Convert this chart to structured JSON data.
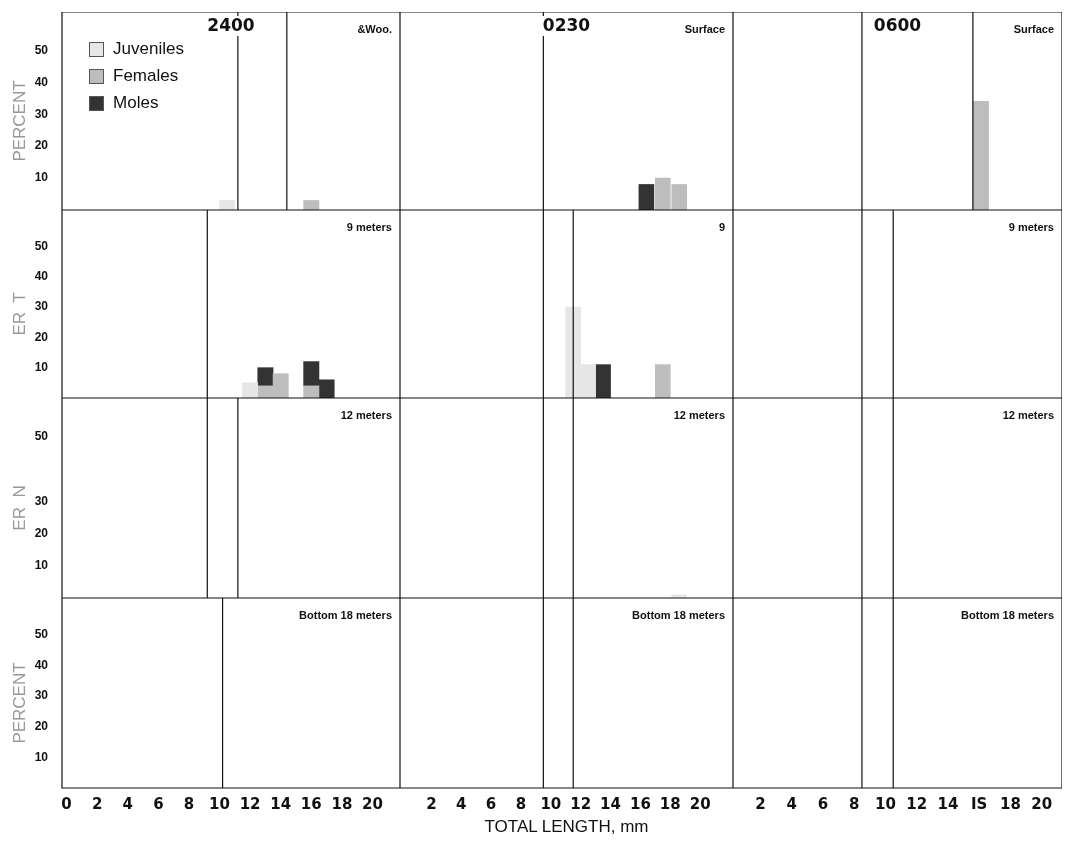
{
  "chart_data": [
    {
      "type": "bar",
      "title": "2400",
      "annotations": [
        "&Woo."
      ],
      "ylabel": "PERCENT",
      "legend": "top left",
      "tick_labels": "y",
      "grid": false,
      "xlim": [
        -0.3,
        21.8
      ],
      "ylim": [
        0,
        62
      ],
      "yticks": [
        10,
        20,
        30,
        40,
        50
      ],
      "ref_lines": [
        {
          "axis": "x",
          "value": 11.2
        },
        {
          "axis": "x",
          "value": 14.4
        }
      ],
      "series": [
        {
          "name": "Juveniles",
          "color": "#e6e6e6",
          "x": [
            10.5
          ],
          "values": [
            3
          ]
        },
        {
          "name": "Females",
          "color": "#bdbdbd",
          "x": [
            16
          ],
          "values": [
            3
          ]
        },
        {
          "name": "Moles",
          "color": "#333333"
        }
      ]
    },
    {
      "type": "bar",
      "title": "0230",
      "annotations": [
        "Surface"
      ],
      "tick_labels": false,
      "grid": false,
      "xlim": [
        -0.1,
        22.2
      ],
      "ylim": [
        0,
        62
      ],
      "ref_lines": [
        {
          "axis": "x",
          "value": 9.5
        }
      ],
      "series": [
        {
          "color": "#333333",
          "x": [
            16.4
          ],
          "values": [
            8
          ]
        },
        {
          "color": "#bdbdbd",
          "x": [
            17.5,
            18.6
          ],
          "values": [
            10,
            8
          ]
        }
      ]
    },
    {
      "type": "bar",
      "title": "0600",
      "annotations": [
        "Surface"
      ],
      "tick_labels": false,
      "grid": false,
      "xlim": [
        0.25,
        21.3
      ],
      "ylim": [
        0,
        62
      ],
      "ref_lines": [
        {
          "axis": "x",
          "value": 8.5
        },
        {
          "axis": "x",
          "value": 15.6
        }
      ],
      "series": [
        {
          "color": "#bdbdbd",
          "x": [
            16.1
          ],
          "values": [
            34
          ]
        }
      ]
    },
    {
      "type": "bar",
      "annotations": [
        "9 meters"
      ],
      "ylabel": "ER  T",
      "tick_labels": "y",
      "stacked": true,
      "grid": false,
      "xlim": [
        -0.3,
        21.8
      ],
      "ylim": [
        0,
        62
      ],
      "yticks": [
        10,
        20,
        30,
        40,
        50
      ],
      "ref_lines": [
        {
          "axis": "x",
          "value": 9.2
        }
      ],
      "x": [
        12,
        13,
        14,
        16,
        17
      ],
      "series": [
        {
          "color": "#e6e6e6",
          "values": [
            5,
            null,
            null,
            null,
            null
          ]
        },
        {
          "color": "#bdbdbd",
          "values": [
            null,
            4,
            8,
            4,
            null
          ]
        },
        {
          "color": "#333333",
          "values": [
            null,
            6,
            null,
            8,
            6
          ]
        }
      ]
    },
    {
      "type": "bar",
      "annotations": [
        "9"
      ],
      "tick_labels": false,
      "grid": false,
      "xlim": [
        -0.1,
        22.2
      ],
      "ylim": [
        0,
        62
      ],
      "ref_lines": [
        {
          "axis": "x",
          "value": 9.5
        },
        {
          "axis": "x",
          "value": 11.5
        }
      ],
      "series": [
        {
          "color": "#e6e6e6",
          "x": [
            11.5,
            12.5
          ],
          "values": [
            30,
            11
          ]
        },
        {
          "color": "#333333",
          "x": [
            13.5
          ],
          "values": [
            11
          ]
        },
        {
          "color": "#bdbdbd",
          "x": [
            17.5
          ],
          "values": [
            11
          ]
        }
      ]
    },
    {
      "type": "bar",
      "annotations": [
        "9 meters"
      ],
      "tick_labels": false,
      "grid": false,
      "xlim": [
        0.25,
        21.3
      ],
      "ylim": [
        0,
        62
      ],
      "ref_lines": [
        {
          "axis": "x",
          "value": 8.5
        },
        {
          "axis": "x",
          "value": 10.5
        }
      ]
    },
    {
      "type": "bar",
      "annotations": [
        "12 meters"
      ],
      "ylabel": "ER  N",
      "tick_labels": "y",
      "grid": false,
      "xlim": [
        -0.3,
        21.8
      ],
      "ylim": [
        0,
        62
      ],
      "yticks": [
        10,
        20,
        30,
        50
      ],
      "ref_lines": [
        {
          "axis": "x",
          "value": 9.2
        },
        {
          "axis": "x",
          "value": 11.2
        }
      ]
    },
    {
      "type": "bar",
      "annotations": [
        "12 meters"
      ],
      "tick_labels": false,
      "grid": false,
      "xlim": [
        -0.1,
        22.2
      ],
      "ylim": [
        0,
        62
      ],
      "ref_lines": [
        {
          "axis": "x",
          "value": 9.5
        },
        {
          "axis": "x",
          "value": 11.5
        }
      ],
      "series": [
        {
          "color": "#e6e6e6",
          "x": [
            18.6
          ],
          "values": [
            1
          ]
        }
      ]
    },
    {
      "type": "bar",
      "annotations": [
        "12 meters"
      ],
      "tick_labels": false,
      "grid": false,
      "xlim": [
        0.25,
        21.3
      ],
      "ylim": [
        0,
        62
      ],
      "ref_lines": [
        {
          "axis": "x",
          "value": 8.5
        },
        {
          "axis": "x",
          "value": 10.5
        }
      ]
    },
    {
      "type": "bar",
      "annotations": [
        "Bottom 18 meters"
      ],
      "ylabel": "PERCENT",
      "grid": false,
      "xlim": [
        -0.3,
        21.8
      ],
      "ylim": [
        0,
        62
      ],
      "yticks": [
        10,
        20,
        30,
        40,
        50
      ],
      "xticks": [
        0,
        2,
        4,
        6,
        8,
        10,
        12,
        14,
        16,
        18,
        20
      ],
      "ref_lines": [
        {
          "axis": "x",
          "value": 10.2
        }
      ]
    },
    {
      "type": "bar",
      "annotations": [
        "Bottom 18 meters"
      ],
      "xlabel": "TOTAL LENGTH, mm",
      "tick_labels": "x",
      "grid": false,
      "xlim": [
        -0.1,
        22.2
      ],
      "ylim": [
        0,
        62
      ],
      "xticks": [
        2,
        4,
        6,
        8,
        10,
        12,
        14,
        16,
        18,
        20
      ],
      "ref_lines": [
        {
          "axis": "x",
          "value": 9.5
        },
        {
          "axis": "x",
          "value": 11.5
        }
      ]
    },
    {
      "type": "bar",
      "annotations": [
        "Bottom 18 meters"
      ],
      "tick_labels": "x",
      "grid": false,
      "xlim": [
        0.25,
        21.3
      ],
      "ylim": [
        0,
        62
      ],
      "xticks": [
        2,
        4,
        6,
        8,
        10,
        12,
        14,
        {
          "value": 16,
          "label": "IS"
        },
        18,
        20
      ],
      "ref_lines": [
        {
          "axis": "x",
          "value": 8.5
        },
        {
          "axis": "x",
          "value": 10.5
        }
      ]
    }
  ]
}
